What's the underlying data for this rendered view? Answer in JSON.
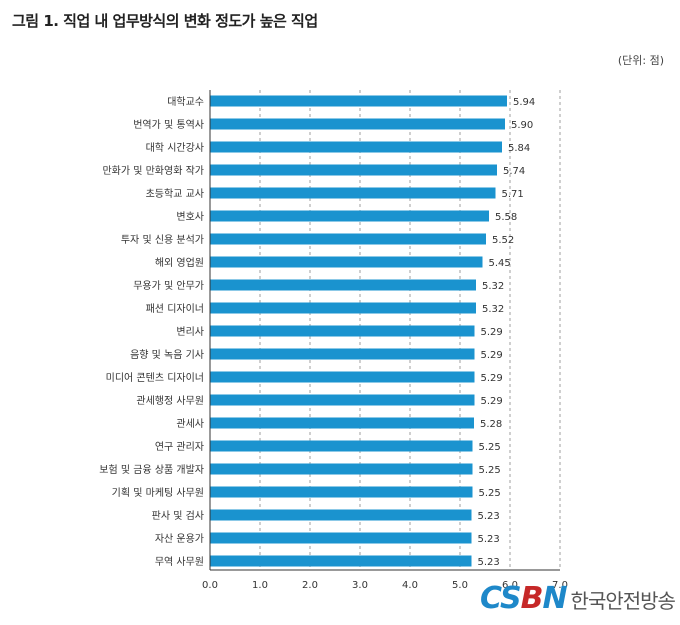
{
  "header": {
    "title": "그림 1. 직업 내 업무방식의 변화 정도가 높은 직업",
    "unit": "(단위: 점)"
  },
  "watermark": {
    "mark_left": "CS",
    "mark_mid": "B",
    "mark_right": "N",
    "text": "한국안전방송"
  },
  "colors": {
    "bar": "#1a93cf",
    "grid": "#888888",
    "axis": "#333333",
    "text": "#333333"
  },
  "chart_data": {
    "type": "bar",
    "orientation": "horizontal",
    "title": "그림 1. 직업 내 업무방식의 변화 정도가 높은 직업",
    "unit": "(단위: 점)",
    "categories": [
      "대학교수",
      "번역가 및 통역사",
      "대학 시간강사",
      "만화가 및 만화영화 작가",
      "초등학교 교사",
      "변호사",
      "투자 및 신용 분석가",
      "해외 영업원",
      "무용가 및 안무가",
      "패션 디자이너",
      "변리사",
      "음향 및 녹음 기사",
      "미디어 콘텐츠 디자이너",
      "관세행정 사무원",
      "관세사",
      "연구 관리자",
      "보험 및 금융 상품 개발자",
      "기획 및 마케팅 사무원",
      "판사 및 검사",
      "자산 운용가",
      "무역 사무원"
    ],
    "values": [
      5.94,
      5.9,
      5.84,
      5.74,
      5.71,
      5.58,
      5.52,
      5.45,
      5.32,
      5.32,
      5.29,
      5.29,
      5.29,
      5.29,
      5.28,
      5.25,
      5.25,
      5.25,
      5.23,
      5.23,
      5.23
    ],
    "value_labels": [
      "5.94",
      "5.90",
      "5.84",
      "5.74",
      "5.71",
      "5.58",
      "5.52",
      "5.45",
      "5.32",
      "5.32",
      "5.29",
      "5.29",
      "5.29",
      "5.29",
      "5.28",
      "5.25",
      "5.25",
      "5.25",
      "5.23",
      "5.23",
      "5.23"
    ],
    "xlim": [
      0,
      7
    ],
    "xticks": [
      "0.0",
      "1.0",
      "2.0",
      "3.0",
      "4.0",
      "5.0",
      "6.0",
      "7.0"
    ],
    "grid": "vertical dashed"
  }
}
